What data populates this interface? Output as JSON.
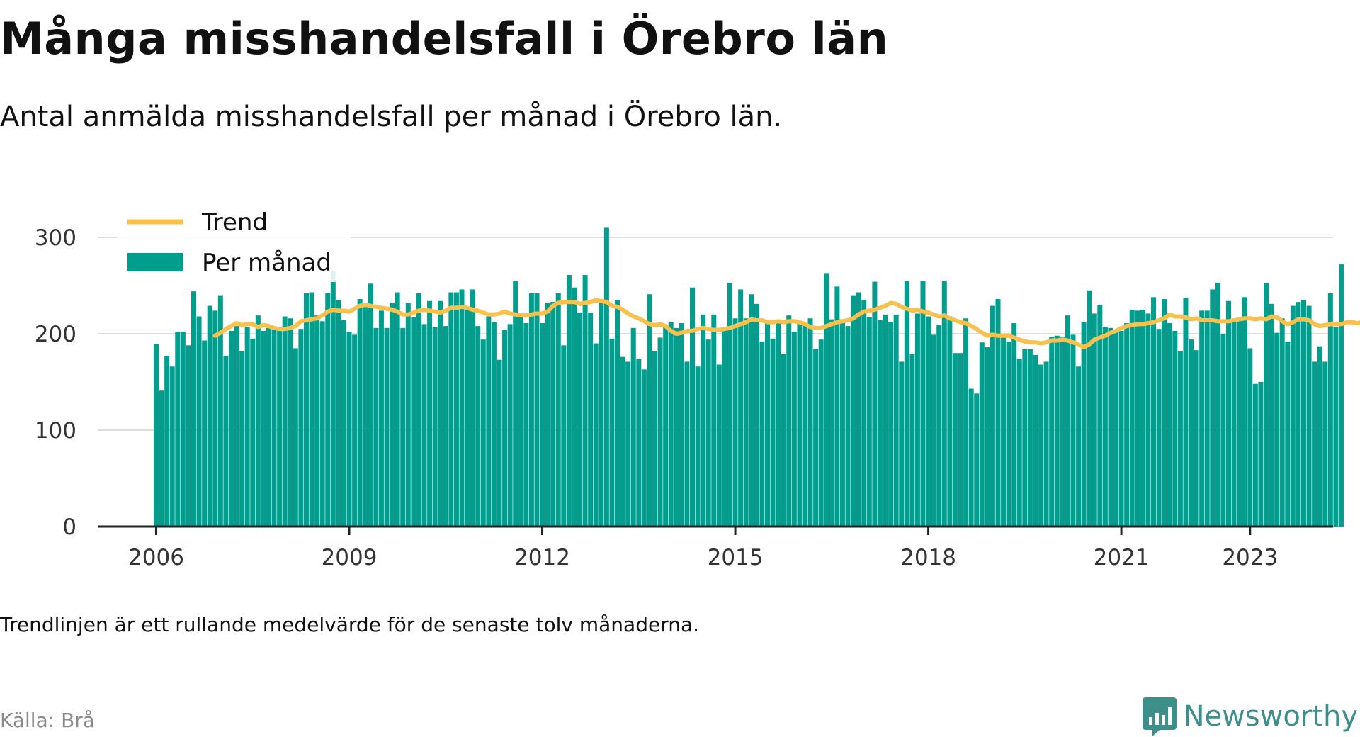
{
  "title": "Många misshandelsfall i Örebro län",
  "subtitle": "Antal anmälda misshandelsfall per månad i Örebro län.",
  "note": "Trendlinjen är ett rullande medelvärde för de senaste tolv månaderna.",
  "source": "Källa: Brå",
  "brand": {
    "name": "Newsworthy",
    "icon": "bar-chart-speech-bubble-icon"
  },
  "colors": {
    "bars": "#009e8f",
    "trend": "#f8c14e",
    "grid": "#dddddd",
    "axis": "#222222",
    "brand": "#3c8f8a"
  },
  "chart_data": {
    "type": "bar",
    "x_start": "2006-01",
    "x_end": "2023-05",
    "x_tick_labels": [
      "2006",
      "2009",
      "2012",
      "2015",
      "2018",
      "2021",
      "2023"
    ],
    "y_ticks": [
      0,
      100,
      200,
      300
    ],
    "ylim": [
      0,
      310
    ],
    "grid": true,
    "legend_position": "top-left",
    "series": [
      {
        "name": "Per månad",
        "kind": "bar",
        "values": [
          189,
          141,
          177,
          166,
          202,
          202,
          188,
          244,
          218,
          193,
          229,
          224,
          240,
          177,
          203,
          208,
          182,
          207,
          195,
          219,
          203,
          206,
          205,
          205,
          218,
          216,
          185,
          205,
          242,
          243,
          219,
          213,
          242,
          265,
          235,
          214,
          202,
          199,
          236,
          232,
          252,
          206,
          224,
          206,
          232,
          243,
          206,
          232,
          217,
          242,
          210,
          234,
          207,
          234,
          208,
          243,
          243,
          246,
          225,
          246,
          208,
          194,
          218,
          212,
          173,
          204,
          210,
          255,
          218,
          211,
          242,
          242,
          211,
          232,
          233,
          242,
          188,
          261,
          248,
          222,
          261,
          222,
          190,
          232,
          310,
          195,
          235,
          176,
          171,
          206,
          174,
          163,
          241,
          182,
          196,
          208,
          212,
          206,
          211,
          171,
          248,
          166,
          220,
          194,
          220,
          168,
          207,
          253,
          216,
          246,
          216,
          241,
          231,
          192,
          211,
          195,
          211,
          179,
          219,
          202,
          212,
          211,
          216,
          184,
          194,
          263,
          215,
          249,
          215,
          208,
          240,
          243,
          235,
          217,
          254,
          214,
          220,
          212,
          220,
          171,
          255,
          179,
          221,
          255,
          218,
          199,
          209,
          255,
          218,
          180,
          180,
          216,
          143,
          138,
          191,
          186,
          229,
          236,
          197,
          192,
          211,
          174,
          184,
          184,
          178,
          168,
          171,
          197,
          198,
          197,
          219,
          199,
          166,
          212,
          245,
          221,
          230,
          207,
          206,
          202,
          203,
          211,
          225,
          224,
          225,
          221,
          238,
          205,
          236,
          211,
          203,
          182,
          237,
          194,
          183,
          224,
          224,
          246,
          253,
          200,
          234,
          215,
          216,
          238,
          185,
          148,
          150,
          253,
          231,
          201,
          216,
          192,
          229,
          233,
          235,
          229,
          171,
          187,
          171,
          242,
          207,
          272
        ]
      },
      {
        "name": "Trend",
        "kind": "line",
        "values": [
          null,
          null,
          null,
          null,
          null,
          null,
          null,
          null,
          null,
          null,
          null,
          198,
          201,
          205,
          208,
          211,
          209,
          210,
          210,
          207,
          209,
          208,
          206,
          205,
          205,
          206,
          208,
          213,
          214,
          215,
          216,
          219,
          223,
          225,
          224,
          224,
          223,
          226,
          229,
          230,
          229,
          228,
          227,
          226,
          225,
          223,
          220,
          220,
          222,
          224,
          225,
          224,
          223,
          222,
          224,
          227,
          227,
          228,
          227,
          225,
          224,
          222,
          220,
          220,
          221,
          223,
          221,
          220,
          219,
          219,
          220,
          221,
          221,
          223,
          229,
          232,
          233,
          233,
          233,
          231,
          232,
          233,
          235,
          234,
          233,
          229,
          228,
          225,
          221,
          218,
          216,
          213,
          210,
          209,
          210,
          208,
          203,
          200,
          201,
          203,
          203,
          205,
          206,
          205,
          204,
          204,
          205,
          206,
          208,
          210,
          212,
          215,
          214,
          214,
          212,
          212,
          213,
          212,
          213,
          213,
          212,
          210,
          207,
          206,
          206,
          208,
          210,
          212,
          213,
          214,
          216,
          220,
          223,
          224,
          225,
          227,
          229,
          232,
          231,
          228,
          226,
          224,
          225,
          223,
          222,
          220,
          218,
          219,
          216,
          214,
          212,
          211,
          208,
          205,
          201,
          198,
          199,
          198,
          198,
          198,
          196,
          194,
          192,
          191,
          191,
          190,
          191,
          193,
          193,
          194,
          193,
          191,
          189,
          186,
          189,
          194,
          196,
          198,
          201,
          203,
          206,
          208,
          209,
          210,
          210,
          211,
          212,
          214,
          216,
          220,
          218,
          218,
          217,
          215,
          216,
          214,
          214,
          214,
          213,
          213,
          213,
          214,
          215,
          216,
          216,
          215,
          216,
          215,
          218,
          217,
          213,
          210,
          212,
          215,
          215,
          214,
          210,
          208,
          209,
          210,
          210,
          210,
          212,
          212,
          211,
          212,
          213,
          210,
          214,
          217
        ]
      }
    ]
  }
}
